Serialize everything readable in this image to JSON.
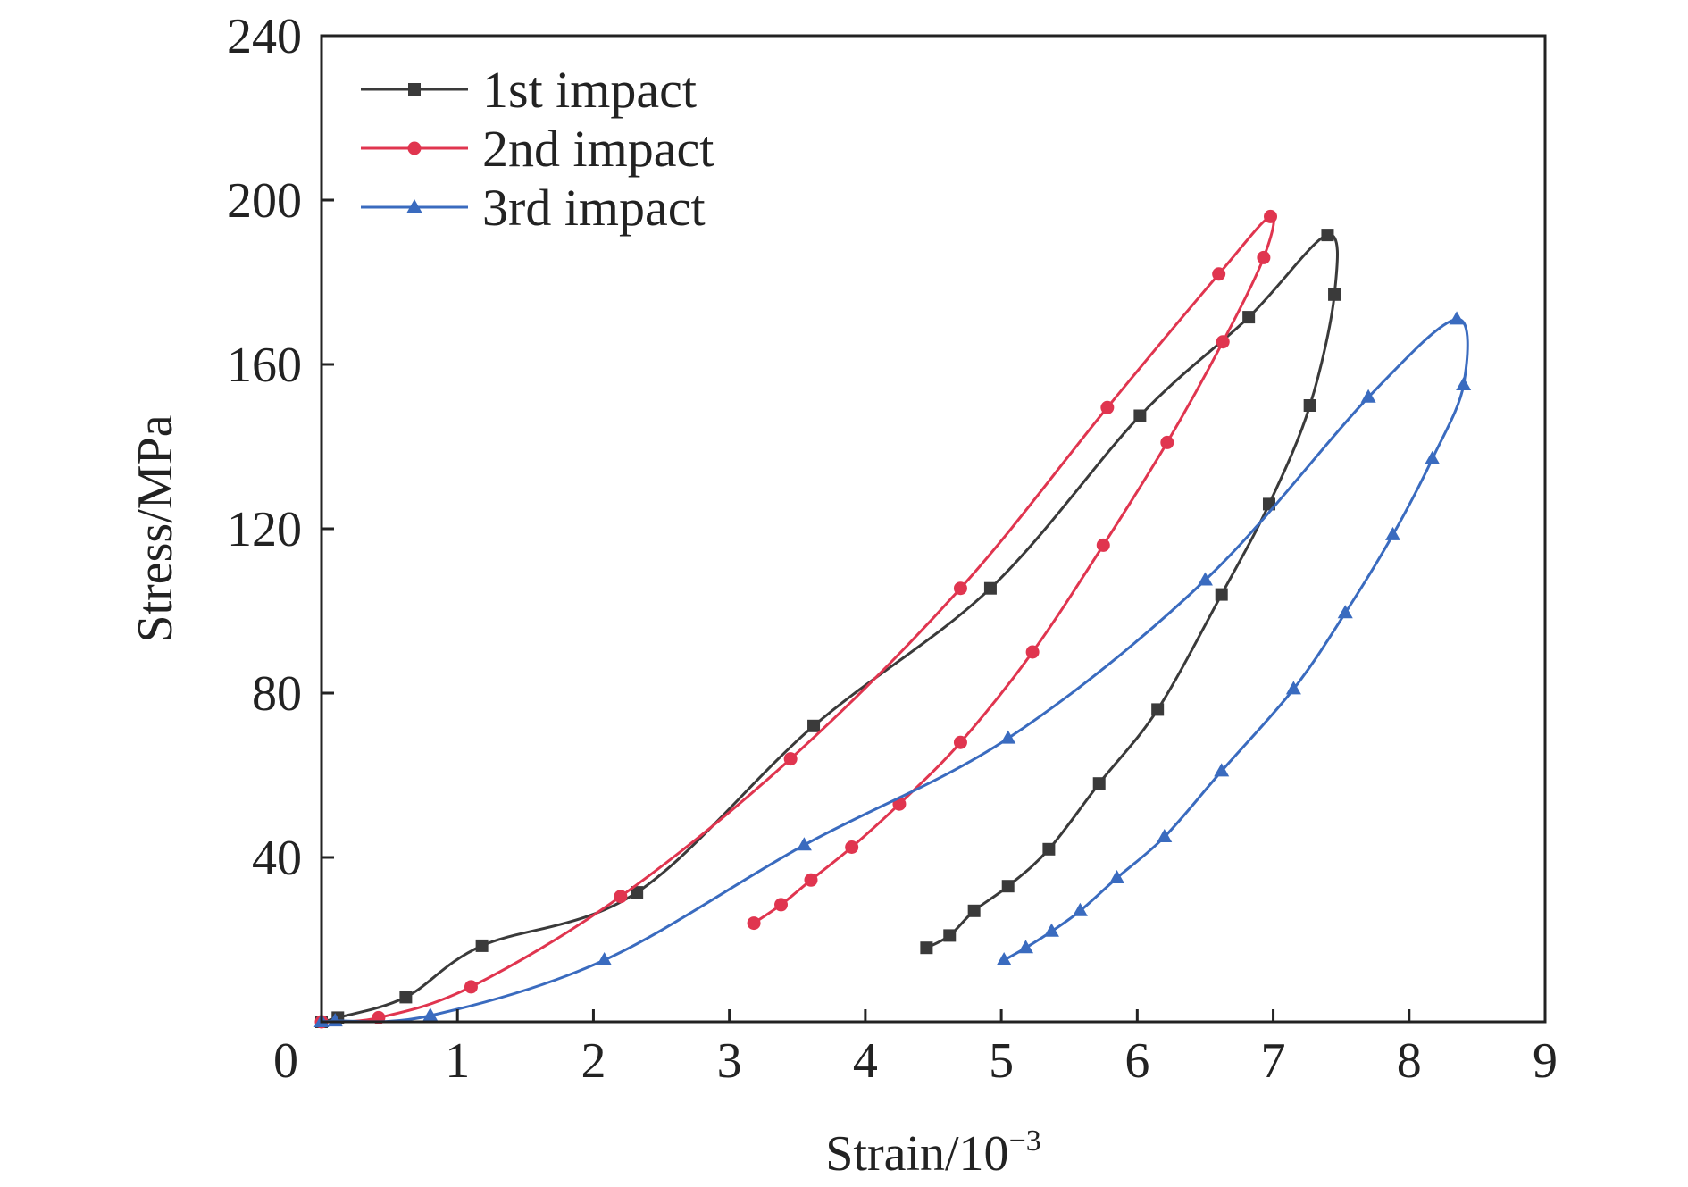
{
  "chart_data": {
    "type": "line",
    "title": "",
    "xlabel": "Strain/10",
    "xlabel_sup": "−3",
    "ylabel": "Stress/MPa",
    "xlim": [
      0,
      9
    ],
    "ylim": [
      0,
      240
    ],
    "x_ticks": [
      0,
      1,
      2,
      3,
      4,
      5,
      6,
      7,
      8,
      9
    ],
    "y_ticks": [
      40,
      80,
      120,
      160,
      200,
      240
    ],
    "x_tick_labels": [
      "0",
      "1",
      "2",
      "3",
      "4",
      "5",
      "6",
      "7",
      "8",
      "9"
    ],
    "y_tick_labels": [
      "40",
      "80",
      "120",
      "160",
      "200",
      "240"
    ],
    "grid": false,
    "legend_position": "top-left",
    "series": [
      {
        "name": "1st impact",
        "color": "#3a3a3a",
        "marker": "square",
        "x": [
          0,
          0.12,
          0.62,
          1.18,
          2.32,
          3.62,
          4.92,
          6.02,
          6.82,
          7.4,
          7.45,
          7.27,
          6.97,
          6.62,
          6.15,
          5.72,
          5.35,
          5.05,
          4.8,
          4.62,
          4.45
        ],
        "y": [
          0,
          1,
          6,
          18.5,
          31.5,
          72,
          105.5,
          147.5,
          171.5,
          191.5,
          177,
          150,
          126,
          104,
          76,
          58,
          42,
          33,
          27,
          21,
          18
        ]
      },
      {
        "name": "2nd impact",
        "color": "#e0354f",
        "marker": "circle",
        "x": [
          0,
          0.42,
          1.1,
          2.2,
          3.45,
          4.7,
          5.78,
          6.6,
          6.98,
          6.93,
          6.63,
          6.22,
          5.75,
          5.23,
          4.7,
          4.25,
          3.9,
          3.6,
          3.38,
          3.18
        ],
        "y": [
          0,
          1,
          8.5,
          30.5,
          64,
          105.5,
          149.5,
          182,
          196,
          186,
          165.5,
          141,
          116,
          90,
          68,
          53,
          42.5,
          34.5,
          28.5,
          24
        ]
      },
      {
        "name": "3rd impact",
        "color": "#3a6bbf",
        "marker": "triangle",
        "x": [
          0,
          0.1,
          0.8,
          2.08,
          3.55,
          5.05,
          6.5,
          7.7,
          8.35,
          8.4,
          8.17,
          7.88,
          7.53,
          7.15,
          6.62,
          6.2,
          5.85,
          5.58,
          5.37,
          5.18,
          5.02
        ],
        "y": [
          0,
          0.2,
          1.5,
          15,
          43,
          69,
          107.5,
          152,
          171,
          155,
          137,
          118.5,
          99.5,
          81,
          61,
          45,
          35,
          27,
          22,
          18,
          15
        ]
      }
    ]
  }
}
